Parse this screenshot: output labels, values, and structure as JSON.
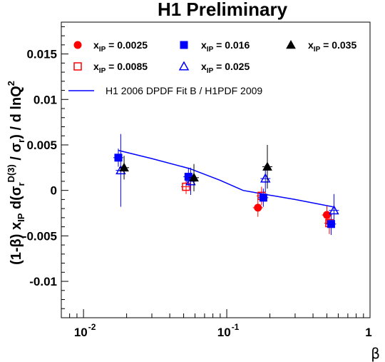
{
  "chart_data": {
    "type": "scatter",
    "title": "H1 Preliminary",
    "xlabel": "β",
    "ylabel": {
      "main": "(1-β)  x",
      "sub_ip": "IP",
      "mid": " d(σ",
      "sub_r1": "r",
      "sup_d3": "D(3)",
      "mid2": " / σ",
      "sub_r2": "r",
      "tail": ") / d lnQ",
      "sup_2": "2"
    },
    "x_scale": "log",
    "xlim": [
      0.007,
      1
    ],
    "ylim": [
      -0.014,
      0.0185
    ],
    "y_ticks": [
      {
        "value": 0.015,
        "label": "0.015"
      },
      {
        "value": 0.01,
        "label": "0.01"
      },
      {
        "value": 0.005,
        "label": "0.005"
      },
      {
        "value": 0,
        "label": "0"
      },
      {
        "value": -0.005,
        "label": "-0.005"
      },
      {
        "value": -0.01,
        "label": "-0.01"
      }
    ],
    "x_major_ticks": [
      {
        "value": 0.01,
        "base": "10",
        "exp": "-2"
      },
      {
        "value": 0.1,
        "base": "10",
        "exp": "-1"
      },
      {
        "value": 1,
        "base": "1",
        "exp": ""
      }
    ],
    "series": [
      {
        "name": "x_IP = 0.0025",
        "legend": {
          "prefix": "x",
          "sub": "IP",
          "suffix": " = 0.0025"
        },
        "marker": "circle",
        "filled": true,
        "color": "#ff0000",
        "points": [
          {
            "x": 0.165,
            "y": -0.0019,
            "err": 0.001
          },
          {
            "x": 0.5,
            "y": -0.0027,
            "err": 0.001
          }
        ]
      },
      {
        "name": "x_IP = 0.0085",
        "legend": {
          "prefix": "x",
          "sub": "IP",
          "suffix": " = 0.0085"
        },
        "marker": "square",
        "filled": false,
        "color": "#ff0000",
        "points": [
          {
            "x": 0.052,
            "y": 0.0004,
            "err": 0.0008
          },
          {
            "x": 0.175,
            "y": -0.0006,
            "err": 0.001
          },
          {
            "x": 0.52,
            "y": -0.0036,
            "err": 0.0012
          }
        ]
      },
      {
        "name": "x_IP = 0.016",
        "legend": {
          "prefix": "x",
          "sub": "IP",
          "suffix": " = 0.016"
        },
        "marker": "square",
        "filled": true,
        "color": "#0000ff",
        "points": [
          {
            "x": 0.0175,
            "y": 0.0036,
            "err": 0.001
          },
          {
            "x": 0.054,
            "y": 0.0015,
            "err": 0.001
          },
          {
            "x": 0.18,
            "y": -0.0008,
            "err": 0.001
          },
          {
            "x": 0.535,
            "y": -0.0037,
            "err": 0.0012
          }
        ]
      },
      {
        "name": "x_IP = 0.025",
        "legend": {
          "prefix": "x",
          "sub": "IP",
          "suffix": " = 0.025"
        },
        "marker": "triangle",
        "filled": false,
        "color": "#0000ff",
        "points": [
          {
            "x": 0.0182,
            "y": 0.0022,
            "err": 0.004
          },
          {
            "x": 0.056,
            "y": 0.001,
            "err": 0.0015
          },
          {
            "x": 0.186,
            "y": 0.0013,
            "err": 0.0015
          },
          {
            "x": 0.56,
            "y": -0.0022,
            "err": 0.0018
          }
        ]
      },
      {
        "name": "x_IP = 0.035",
        "legend": {
          "prefix": "x",
          "sub": "IP",
          "suffix": " = 0.035"
        },
        "marker": "triangle",
        "filled": true,
        "color": "#000000",
        "points": [
          {
            "x": 0.0192,
            "y": 0.0025,
            "err": 0.0013
          },
          {
            "x": 0.059,
            "y": 0.0014,
            "err": 0.0015
          },
          {
            "x": 0.192,
            "y": 0.0026,
            "err": 0.0024
          }
        ]
      }
    ],
    "fit": {
      "name": "H1 2006 DPDF Fit B / H1PDF 2009",
      "color": "#0000ff",
      "points": [
        {
          "x": 0.0175,
          "y": 0.0044
        },
        {
          "x": 0.03,
          "y": 0.0035
        },
        {
          "x": 0.055,
          "y": 0.0024
        },
        {
          "x": 0.09,
          "y": 0.0011
        },
        {
          "x": 0.13,
          "y": 0.0
        },
        {
          "x": 0.18,
          "y": -0.0004
        },
        {
          "x": 0.3,
          "y": -0.001
        },
        {
          "x": 0.55,
          "y": -0.0018
        }
      ]
    },
    "grid": false,
    "legend_position": "top"
  }
}
